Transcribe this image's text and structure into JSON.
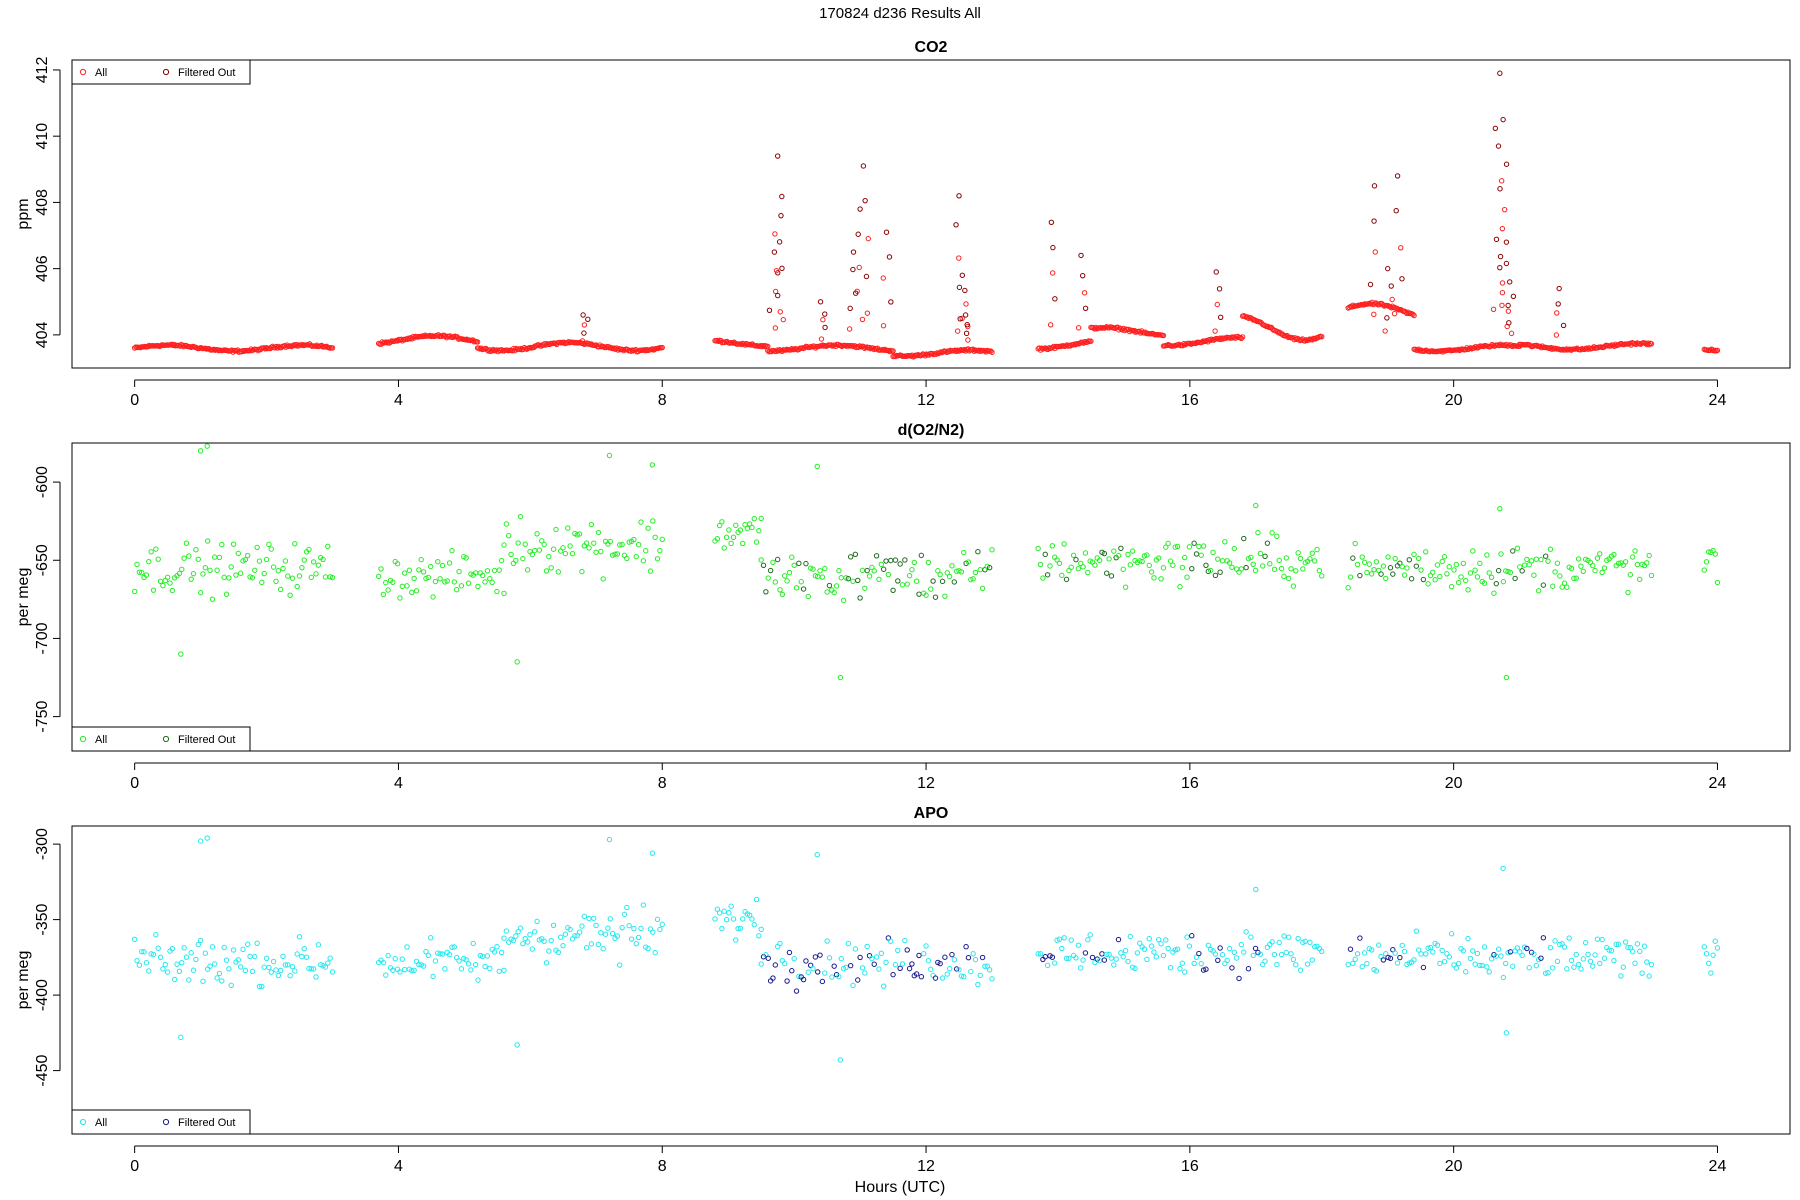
{
  "figure": {
    "title": "170824   d236   Results All",
    "xlabel": "Hours (UTC)"
  },
  "chart_data": [
    {
      "type": "scatter",
      "title": "CO2",
      "xlabel": "",
      "ylabel": "ppm",
      "xlim": [
        -0.95,
        25.1
      ],
      "ylim": [
        403.0,
        412.3
      ],
      "xticks": [
        0,
        4,
        8,
        12,
        16,
        20,
        24
      ],
      "yticks": [
        404,
        406,
        408,
        410,
        412
      ],
      "legend": {
        "position": "top-left",
        "entries": [
          "All",
          "Filtered Out"
        ]
      },
      "grid": false,
      "colors": {
        "all": "#ff2020",
        "filtered": "#8b0000"
      },
      "segments": [
        {
          "x": [
            0.0,
            3.0
          ],
          "base": 403.6,
          "amp": 0.15
        },
        {
          "x": [
            3.7,
            5.2
          ],
          "base": 403.85,
          "amp": 0.2
        },
        {
          "x": [
            5.2,
            8.0
          ],
          "base": 403.65,
          "amp": 0.2
        },
        {
          "x": [
            8.8,
            9.6
          ],
          "base": 403.75,
          "amp": 0.15
        },
        {
          "x": [
            9.6,
            11.5
          ],
          "base": 403.6,
          "amp": 0.15
        },
        {
          "x": [
            11.5,
            13.0
          ],
          "base": 403.45,
          "amp": 0.15
        },
        {
          "x": [
            13.7,
            14.5
          ],
          "base": 403.7,
          "amp": 0.2
        },
        {
          "x": [
            14.5,
            15.6
          ],
          "base": 404.1,
          "amp": 0.2
        },
        {
          "x": [
            15.6,
            16.8
          ],
          "base": 403.8,
          "amp": 0.2
        },
        {
          "x": [
            16.8,
            18.0
          ],
          "base": 404.2,
          "amp": 0.6
        },
        {
          "x": [
            18.4,
            19.4
          ],
          "base": 404.7,
          "amp": 0.4
        },
        {
          "x": [
            19.4,
            21.0
          ],
          "base": 403.6,
          "amp": 0.15
        },
        {
          "x": [
            21.0,
            23.0
          ],
          "base": 403.65,
          "amp": 0.15
        },
        {
          "x": [
            23.8,
            24.0
          ],
          "base": 403.6,
          "amp": 0.1
        }
      ],
      "spikes": [
        {
          "x": 6.8,
          "y": 404.6
        },
        {
          "x": 9.7,
          "y": 406.5
        },
        {
          "x": 9.75,
          "y": 409.4
        },
        {
          "x": 9.8,
          "y": 407.6
        },
        {
          "x": 10.4,
          "y": 405.0
        },
        {
          "x": 10.9,
          "y": 406.5
        },
        {
          "x": 11.0,
          "y": 407.8
        },
        {
          "x": 11.05,
          "y": 409.1
        },
        {
          "x": 11.4,
          "y": 407.1
        },
        {
          "x": 12.5,
          "y": 408.2
        },
        {
          "x": 12.55,
          "y": 405.8
        },
        {
          "x": 12.6,
          "y": 404.6
        },
        {
          "x": 13.9,
          "y": 407.4
        },
        {
          "x": 14.35,
          "y": 406.4
        },
        {
          "x": 16.4,
          "y": 405.9
        },
        {
          "x": 18.8,
          "y": 408.5
        },
        {
          "x": 19.15,
          "y": 408.8
        },
        {
          "x": 19.0,
          "y": 406.0
        },
        {
          "x": 20.7,
          "y": 411.9
        },
        {
          "x": 20.75,
          "y": 410.5
        },
        {
          "x": 20.68,
          "y": 409.7
        },
        {
          "x": 20.8,
          "y": 406.8
        },
        {
          "x": 20.85,
          "y": 405.6
        },
        {
          "x": 21.6,
          "y": 405.4
        }
      ]
    },
    {
      "type": "scatter",
      "title": "d(O2/N2)",
      "xlabel": "",
      "ylabel": "per meg",
      "xlim": [
        -0.95,
        25.1
      ],
      "ylim": [
        -772,
        -575
      ],
      "xticks": [
        0,
        4,
        8,
        12,
        16,
        20,
        24
      ],
      "yticks": [
        -750,
        -700,
        -650,
        -600
      ],
      "legend": {
        "position": "bottom-left",
        "entries": [
          "All",
          "Filtered Out"
        ]
      },
      "grid": false,
      "colors": {
        "all": "#22ee22",
        "filtered": "#1f6b1f"
      },
      "segments": [
        {
          "x": [
            0.0,
            3.0
          ],
          "base": -655,
          "spread": 18
        },
        {
          "x": [
            3.7,
            5.6
          ],
          "base": -660,
          "spread": 15
        },
        {
          "x": [
            5.6,
            8.0
          ],
          "base": -640,
          "spread": 20
        },
        {
          "x": [
            8.8,
            9.5
          ],
          "base": -632,
          "spread": 15
        },
        {
          "x": [
            9.5,
            13.0
          ],
          "base": -660,
          "spread": 18
        },
        {
          "x": [
            13.7,
            18.0
          ],
          "base": -650,
          "spread": 17
        },
        {
          "x": [
            18.4,
            23.0
          ],
          "base": -655,
          "spread": 16
        },
        {
          "x": [
            23.8,
            24.0
          ],
          "base": -650,
          "spread": 20
        }
      ],
      "outliers": [
        {
          "x": 0.7,
          "y": -710
        },
        {
          "x": 1.0,
          "y": -580
        },
        {
          "x": 1.1,
          "y": -577
        },
        {
          "x": 5.8,
          "y": -715
        },
        {
          "x": 7.2,
          "y": -583
        },
        {
          "x": 7.85,
          "y": -589
        },
        {
          "x": 10.35,
          "y": -590
        },
        {
          "x": 10.7,
          "y": -725
        },
        {
          "x": 20.8,
          "y": -725
        },
        {
          "x": 20.7,
          "y": -617
        },
        {
          "x": 17.0,
          "y": -615
        }
      ]
    },
    {
      "type": "scatter",
      "title": "APO",
      "xlabel": "Hours (UTC)",
      "ylabel": "per meg",
      "xlim": [
        -0.95,
        25.1
      ],
      "ylim": [
        -492,
        -288
      ],
      "xticks": [
        0,
        4,
        8,
        12,
        16,
        20,
        24
      ],
      "yticks": [
        -450,
        -400,
        -350,
        -300
      ],
      "legend": {
        "position": "bottom-left",
        "entries": [
          "All",
          "Filtered Out"
        ]
      },
      "grid": false,
      "colors": {
        "all": "#22e8f0",
        "filtered": "#1a1a8c"
      },
      "segments": [
        {
          "x": [
            0.0,
            3.0
          ],
          "base": -378,
          "spread": 17
        },
        {
          "x": [
            3.7,
            5.6
          ],
          "base": -378,
          "spread": 15
        },
        {
          "x": [
            5.6,
            8.0
          ],
          "base": -360,
          "spread": 20
        },
        {
          "x": [
            8.8,
            9.5
          ],
          "base": -350,
          "spread": 14
        },
        {
          "x": [
            9.5,
            13.0
          ],
          "base": -378,
          "spread": 17
        },
        {
          "x": [
            13.7,
            18.0
          ],
          "base": -372,
          "spread": 16
        },
        {
          "x": [
            18.4,
            23.0
          ],
          "base": -375,
          "spread": 15
        },
        {
          "x": [
            23.8,
            24.0
          ],
          "base": -375,
          "spread": 18
        }
      ],
      "outliers": [
        {
          "x": 0.7,
          "y": -428
        },
        {
          "x": 1.0,
          "y": -298
        },
        {
          "x": 1.1,
          "y": -296
        },
        {
          "x": 5.8,
          "y": -433
        },
        {
          "x": 7.2,
          "y": -297
        },
        {
          "x": 7.85,
          "y": -306
        },
        {
          "x": 10.35,
          "y": -307
        },
        {
          "x": 10.7,
          "y": -443
        },
        {
          "x": 20.8,
          "y": -425
        },
        {
          "x": 20.75,
          "y": -316
        },
        {
          "x": 17.0,
          "y": -330
        }
      ]
    }
  ]
}
